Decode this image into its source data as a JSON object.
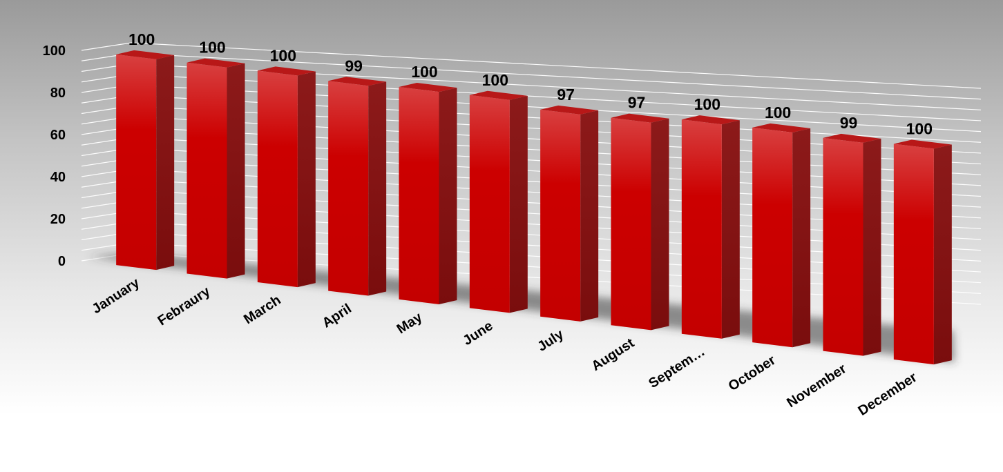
{
  "chart_data": {
    "type": "bar",
    "style": "3d-column",
    "categories": [
      "January",
      "Febraury",
      "March",
      "April",
      "May",
      "June",
      "July",
      "August",
      "Septem…",
      "October",
      "November",
      "December"
    ],
    "series": [
      {
        "values": [
          100,
          100,
          100,
          99,
          100,
          100,
          97,
          97,
          100,
          100,
          99,
          100
        ]
      }
    ],
    "data_labels": [
      "100",
      "100",
      "100",
      "99",
      "100",
      "100",
      "97",
      "97",
      "100",
      "100",
      "99",
      "100"
    ],
    "ylim": [
      0,
      100
    ],
    "yticks": [
      "0",
      "20",
      "40",
      "60",
      "80",
      "100"
    ],
    "grid": true,
    "legend": "none",
    "colors": {
      "bar_front": "#cc0000",
      "bar_side": "#8a1010",
      "bar_top": "#b81818"
    }
  }
}
